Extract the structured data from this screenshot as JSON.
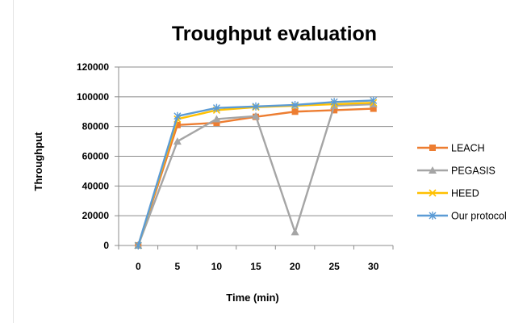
{
  "chart_data": {
    "type": "line",
    "title": "Troughput evaluation",
    "xlabel": "Time (min)",
    "ylabel": "Throughput",
    "x": [
      0,
      5,
      10,
      15,
      20,
      25,
      30
    ],
    "x_tick_labels": [
      "0",
      "5",
      "10",
      "15",
      "20",
      "25",
      "30"
    ],
    "ylim": [
      0,
      120000
    ],
    "y_tick_labels": [
      "0",
      "20000",
      "40000",
      "60000",
      "80000",
      "100000",
      "120000"
    ],
    "grid": true,
    "legend_position": "right",
    "series": [
      {
        "name": "LEACH",
        "color": "#ED7D31",
        "marker": "square",
        "values": [
          0,
          81000,
          82500,
          86500,
          90000,
          91000,
          92000
        ]
      },
      {
        "name": "PEGASIS",
        "color": "#A5A5A5",
        "marker": "triangle",
        "values": [
          0,
          70000,
          85000,
          87000,
          9000,
          94000,
          95000
        ]
      },
      {
        "name": "HEED",
        "color": "#FFC000",
        "marker": "x",
        "values": [
          0,
          85000,
          91000,
          93000,
          94000,
          95000,
          96000
        ]
      },
      {
        "name": "Our protocol",
        "color": "#5B9BD5",
        "marker": "star",
        "values": [
          0,
          87000,
          92500,
          93500,
          94500,
          96500,
          97500
        ]
      }
    ]
  }
}
